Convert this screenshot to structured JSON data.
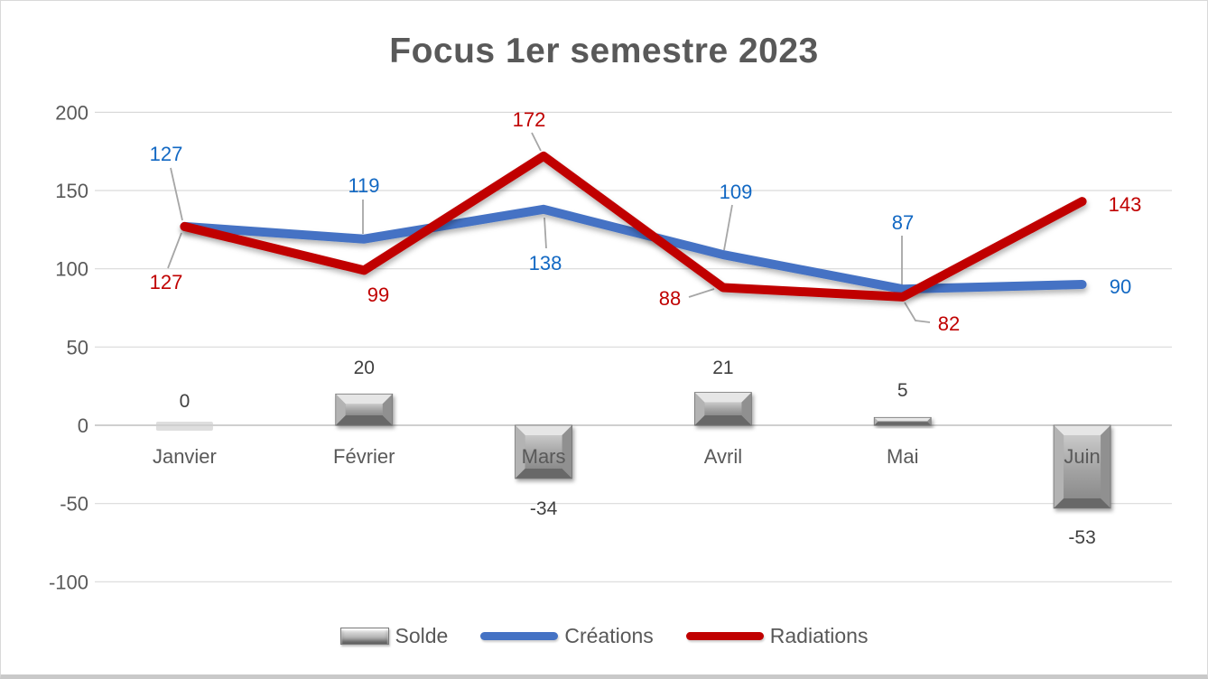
{
  "chart_data": {
    "type": "combo-bar-line",
    "title": "Focus 1er semestre 2023",
    "categories": [
      "Janvier",
      "Février",
      "Mars",
      "Avril",
      "Mai",
      "Juin"
    ],
    "series": [
      {
        "name": "Solde",
        "type": "bar",
        "color": "#9E9E9E",
        "label_color": "#404040",
        "values": [
          0,
          20,
          -34,
          21,
          5,
          -53
        ]
      },
      {
        "name": "Créations",
        "type": "line",
        "color": "#4472C4",
        "label_color": "#1268C3",
        "values": [
          127,
          119,
          138,
          109,
          87,
          90
        ]
      },
      {
        "name": "Radiations",
        "type": "line",
        "color": "#C00000",
        "label_color": "#C00000",
        "values": [
          127,
          99,
          172,
          88,
          82,
          143
        ]
      }
    ],
    "yticks": [
      200,
      150,
      100,
      50,
      0,
      -50,
      -100
    ],
    "ylim": [
      -100,
      200
    ],
    "grid": true,
    "legend_position": "bottom",
    "axis_text_color": "#595959",
    "bar_label_color": "#404040",
    "gridline_color": "#D9D9D9",
    "zero_line_color": "#CFCFCF",
    "leader_line_color": "#A6A6A6"
  }
}
